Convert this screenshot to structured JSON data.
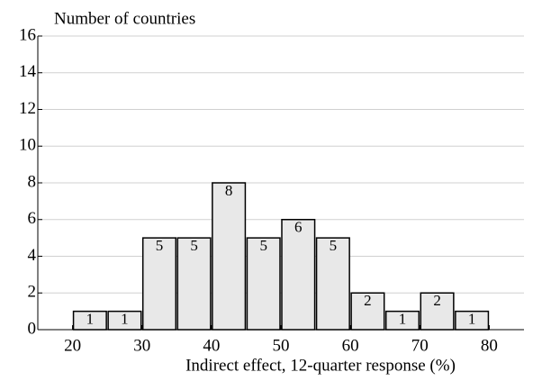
{
  "chart_data": {
    "type": "histogram",
    "title": "Number of countries",
    "x_label": "Indirect effect, 12-quarter response (%)",
    "bins": [
      20,
      25,
      30,
      35,
      40,
      45,
      50,
      55,
      60,
      65,
      70,
      75,
      80
    ],
    "values": [
      1,
      1,
      5,
      5,
      8,
      5,
      6,
      5,
      2,
      1,
      2,
      1
    ],
    "color": "#e8e8e8",
    "xlim": [
      15,
      85
    ],
    "xticks": [
      20,
      30,
      40,
      50,
      60,
      70,
      80
    ],
    "ylim": [
      0,
      16
    ],
    "yticks": [
      0,
      2,
      4,
      6,
      8,
      10,
      12,
      14,
      16
    ],
    "grid": true
  }
}
